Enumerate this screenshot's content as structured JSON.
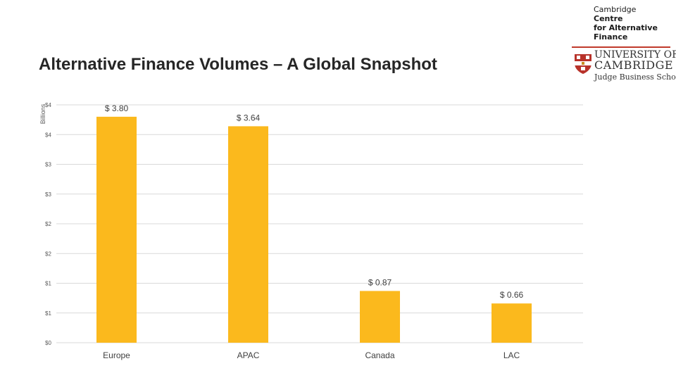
{
  "chart_data": {
    "type": "bar",
    "title": "Alternative Finance Volumes – A Global Snapshot",
    "ylabel": "Billions",
    "xlabel": "",
    "categories": [
      "Europe",
      "APAC",
      "Canada",
      "LAC"
    ],
    "values": [
      3.8,
      3.64,
      0.87,
      0.66
    ],
    "data_labels": [
      "$ 3.80",
      "$ 3.64",
      "$ 0.87",
      "$ 0.66"
    ],
    "ylim": [
      0,
      4
    ],
    "ytick_values": [
      0,
      0.5,
      1,
      1.5,
      2,
      2.5,
      3,
      3.5,
      4
    ],
    "ytick_labels": [
      "$0",
      "$1",
      "$1",
      "$2",
      "$2",
      "$3",
      "$3",
      "$4",
      "$4"
    ],
    "grid": true,
    "legend": "none",
    "bar_color": "#FBB91D",
    "grid_color": "#D9D9D9"
  },
  "logo": {
    "ccaf_lines": [
      "Cambridge",
      "Centre",
      "for Alternative",
      "Finance"
    ],
    "uc_line1": "UNIVERSITY OF",
    "uc_line2": "CAMBRIDGE",
    "uc_line3": "Judge Business School"
  },
  "icons": {
    "crest": "cambridge-crest-icon"
  }
}
